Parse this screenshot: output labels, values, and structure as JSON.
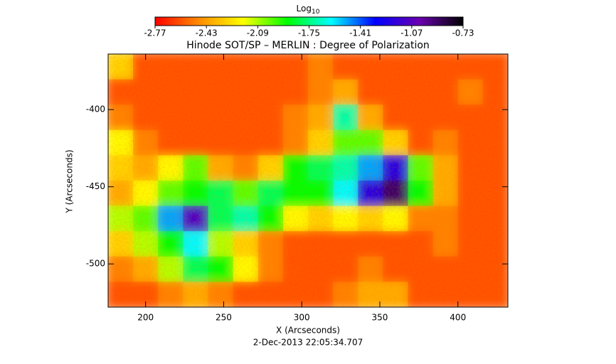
{
  "chart_data": {
    "type": "heatmap",
    "title": "Hinode SOT/SP – MERLIN : Degree of Polarization",
    "x_label": "X (Arcseconds)",
    "y_label": "Y (Arcseconds)",
    "date": "2-Dec-2013 22:05:34.707",
    "colorbar_label": {
      "text": "Log",
      "subscript": "10"
    },
    "colormap": [
      "#ff0000",
      "#ff8c00",
      "#ffff00",
      "#00ff00",
      "#00ffff",
      "#0000ff",
      "#6a00b0",
      "#000000"
    ],
    "zlim": [
      -2.77,
      -0.73
    ],
    "zticks": [
      -2.77,
      -2.43,
      -2.09,
      -1.75,
      -1.41,
      -1.07,
      -0.73
    ],
    "xlim": [
      176,
      432
    ],
    "ylim": [
      -528,
      -364
    ],
    "xticks": [
      200,
      250,
      300,
      350,
      400
    ],
    "yticks": [
      -400,
      -450,
      -500
    ],
    "z": [
      [
        -2.3,
        -2.6,
        -2.6,
        -2.6,
        -2.6,
        -2.6,
        -2.6,
        -2.6,
        -2.5,
        -2.6,
        -2.6,
        -2.6,
        -2.6,
        -2.6,
        -2.6,
        -2.6
      ],
      [
        -2.6,
        -2.6,
        -2.6,
        -2.6,
        -2.6,
        -2.6,
        -2.6,
        -2.6,
        -2.5,
        -2.4,
        -2.6,
        -2.6,
        -2.6,
        -2.6,
        -2.5,
        -2.6
      ],
      [
        -2.5,
        -2.6,
        -2.6,
        -2.6,
        -2.6,
        -2.6,
        -2.6,
        -2.5,
        -2.4,
        -1.7,
        -2.4,
        -2.6,
        -2.6,
        -2.6,
        -2.6,
        -2.6
      ],
      [
        -2.2,
        -2.5,
        -2.6,
        -2.6,
        -2.6,
        -2.6,
        -2.6,
        -2.5,
        -2.3,
        -2.0,
        -2.0,
        -2.3,
        -2.6,
        -2.5,
        -2.6,
        -2.6
      ],
      [
        -2.3,
        -2.4,
        -2.2,
        -2.0,
        -2.4,
        -2.5,
        -2.3,
        -1.9,
        -1.8,
        -1.7,
        -1.5,
        -1.2,
        -2.0,
        -2.4,
        -2.6,
        -2.6
      ],
      [
        -2.4,
        -2.2,
        -2.0,
        -1.9,
        -1.8,
        -2.0,
        -1.8,
        -1.9,
        -1.9,
        -1.6,
        -1.2,
        -0.9,
        -1.9,
        -2.4,
        -2.6,
        -2.6
      ],
      [
        -2.1,
        -2.0,
        -1.5,
        -1.1,
        -1.8,
        -1.7,
        -1.9,
        -2.2,
        -2.3,
        -2.2,
        -2.3,
        -2.2,
        -2.5,
        -2.5,
        -2.6,
        -2.6
      ],
      [
        -2.3,
        -2.1,
        -1.9,
        -1.6,
        -2.1,
        -2.3,
        -2.5,
        -2.6,
        -2.6,
        -2.6,
        -2.6,
        -2.6,
        -2.6,
        -2.5,
        -2.6,
        -2.6
      ],
      [
        -2.5,
        -2.4,
        -2.1,
        -1.8,
        -1.9,
        -2.2,
        -2.5,
        -2.6,
        -2.6,
        -2.6,
        -2.5,
        -2.6,
        -2.6,
        -2.6,
        -2.6,
        -2.6
      ],
      [
        -2.6,
        -2.6,
        -2.5,
        -2.4,
        -2.5,
        -2.6,
        -2.6,
        -2.6,
        -2.6,
        -2.5,
        -2.4,
        -2.4,
        -2.6,
        -2.6,
        -2.6,
        -2.6
      ]
    ]
  }
}
